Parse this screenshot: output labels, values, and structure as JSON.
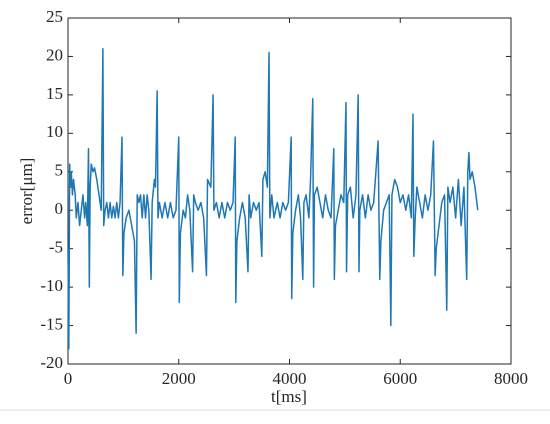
{
  "chart_data": {
    "type": "line",
    "xlabel": "t[ms]",
    "ylabel": "error[μm]",
    "xlim": [
      0,
      8000
    ],
    "xticks": [
      0,
      2000,
      4000,
      6000,
      8000
    ],
    "ylim": [
      -20,
      25
    ],
    "yticks": [
      -20,
      -15,
      -10,
      -5,
      0,
      5,
      10,
      15,
      20,
      25
    ],
    "series": [
      {
        "color": "#1f77b4",
        "x": [
          0,
          15,
          30,
          45,
          60,
          80,
          100,
          130,
          150,
          180,
          210,
          240,
          270,
          300,
          320,
          350,
          370,
          385,
          400,
          420,
          450,
          480,
          520,
          560,
          600,
          630,
          645,
          670,
          700,
          730,
          760,
          790,
          820,
          850,
          880,
          910,
          940,
          975,
          990,
          1010,
          1050,
          1100,
          1150,
          1200,
          1230,
          1250,
          1280,
          1310,
          1340,
          1370,
          1400,
          1430,
          1460,
          1500,
          1520,
          1560,
          1580,
          1610,
          1625,
          1650,
          1700,
          1750,
          1800,
          1850,
          1900,
          1950,
          2000,
          2010,
          2030,
          2080,
          2120,
          2160,
          2200,
          2250,
          2270,
          2300,
          2350,
          2400,
          2450,
          2500,
          2520,
          2580,
          2620,
          2635,
          2680,
          2730,
          2780,
          2830,
          2880,
          2930,
          2980,
          3020,
          3030,
          3050,
          3100,
          3150,
          3200,
          3250,
          3270,
          3300,
          3350,
          3400,
          3450,
          3500,
          3520,
          3560,
          3600,
          3630,
          3645,
          3680,
          3720,
          3780,
          3830,
          3880,
          3930,
          3980,
          4030,
          4040,
          4060,
          4110,
          4160,
          4200,
          4240,
          4260,
          4300,
          4350,
          4380,
          4420,
          4435,
          4450,
          4500,
          4550,
          4600,
          4650,
          4700,
          4750,
          4800,
          4810,
          4830,
          4880,
          4930,
          4980,
          5020,
          5030,
          5050,
          5100,
          5150,
          5200,
          5240,
          5255,
          5270,
          5320,
          5370,
          5420,
          5470,
          5520,
          5600,
          5630,
          5650,
          5700,
          5750,
          5800,
          5830,
          5850,
          5900,
          5950,
          6000,
          6050,
          6100,
          6150,
          6200,
          6230,
          6245,
          6270,
          6300,
          6350,
          6400,
          6450,
          6500,
          6550,
          6600,
          6630,
          6650,
          6700,
          6750,
          6800,
          6840,
          6860,
          6900,
          6950,
          7000,
          7050,
          7100,
          7150,
          7200,
          7220,
          7240,
          7260,
          7300,
          7350,
          7400
        ],
        "values": [
          -5,
          -18,
          6,
          3,
          5,
          2,
          4,
          2,
          -1,
          1,
          -2,
          0,
          2,
          -1,
          1,
          -2,
          8,
          -10,
          3,
          6,
          5,
          5.5,
          4,
          2,
          0,
          21,
          -2,
          0,
          1,
          -1,
          1,
          -1,
          0.5,
          -1,
          1,
          -1,
          1,
          9.5,
          -8.5,
          -3,
          -1,
          0,
          -2,
          -4,
          -16,
          2,
          1,
          2,
          -1,
          2,
          -1,
          2,
          0,
          -9,
          1,
          4,
          3,
          15.5,
          -1,
          1,
          -1,
          1,
          -1,
          1,
          -1,
          0,
          9.5,
          -12,
          -3,
          0,
          -1,
          2,
          0,
          -8,
          2,
          1,
          0,
          1,
          -1,
          -8.5,
          4,
          3,
          15,
          0,
          1,
          -1,
          1,
          -1,
          1,
          0,
          1,
          9.5,
          -12,
          -4,
          -1,
          1,
          -1,
          -8,
          2,
          -1,
          1,
          0,
          1,
          -6,
          4,
          5,
          3,
          20.5,
          -1,
          2,
          -1,
          1,
          -1,
          1,
          0,
          1,
          9.5,
          -11.5,
          -3,
          0,
          2,
          -1,
          -9,
          1,
          2,
          -1,
          4,
          14.5,
          -10,
          2,
          3,
          1,
          -1,
          2,
          0,
          -1,
          8,
          -9,
          -2,
          0,
          2,
          1,
          14,
          -8,
          2,
          3,
          -1,
          2,
          15,
          -8,
          0,
          2,
          -1,
          2,
          0,
          1,
          9,
          -9,
          -4,
          0,
          1,
          2,
          -15,
          2,
          4,
          3,
          1,
          2,
          0,
          2,
          -1,
          12.5,
          -6,
          -1,
          3,
          1,
          -1,
          2,
          0,
          2,
          9,
          -8.5,
          -5,
          -2,
          1,
          2,
          -13,
          3,
          1,
          3,
          -1,
          4,
          -2,
          3,
          -9,
          5,
          7.5,
          4,
          5,
          3,
          0
        ]
      }
    ]
  }
}
